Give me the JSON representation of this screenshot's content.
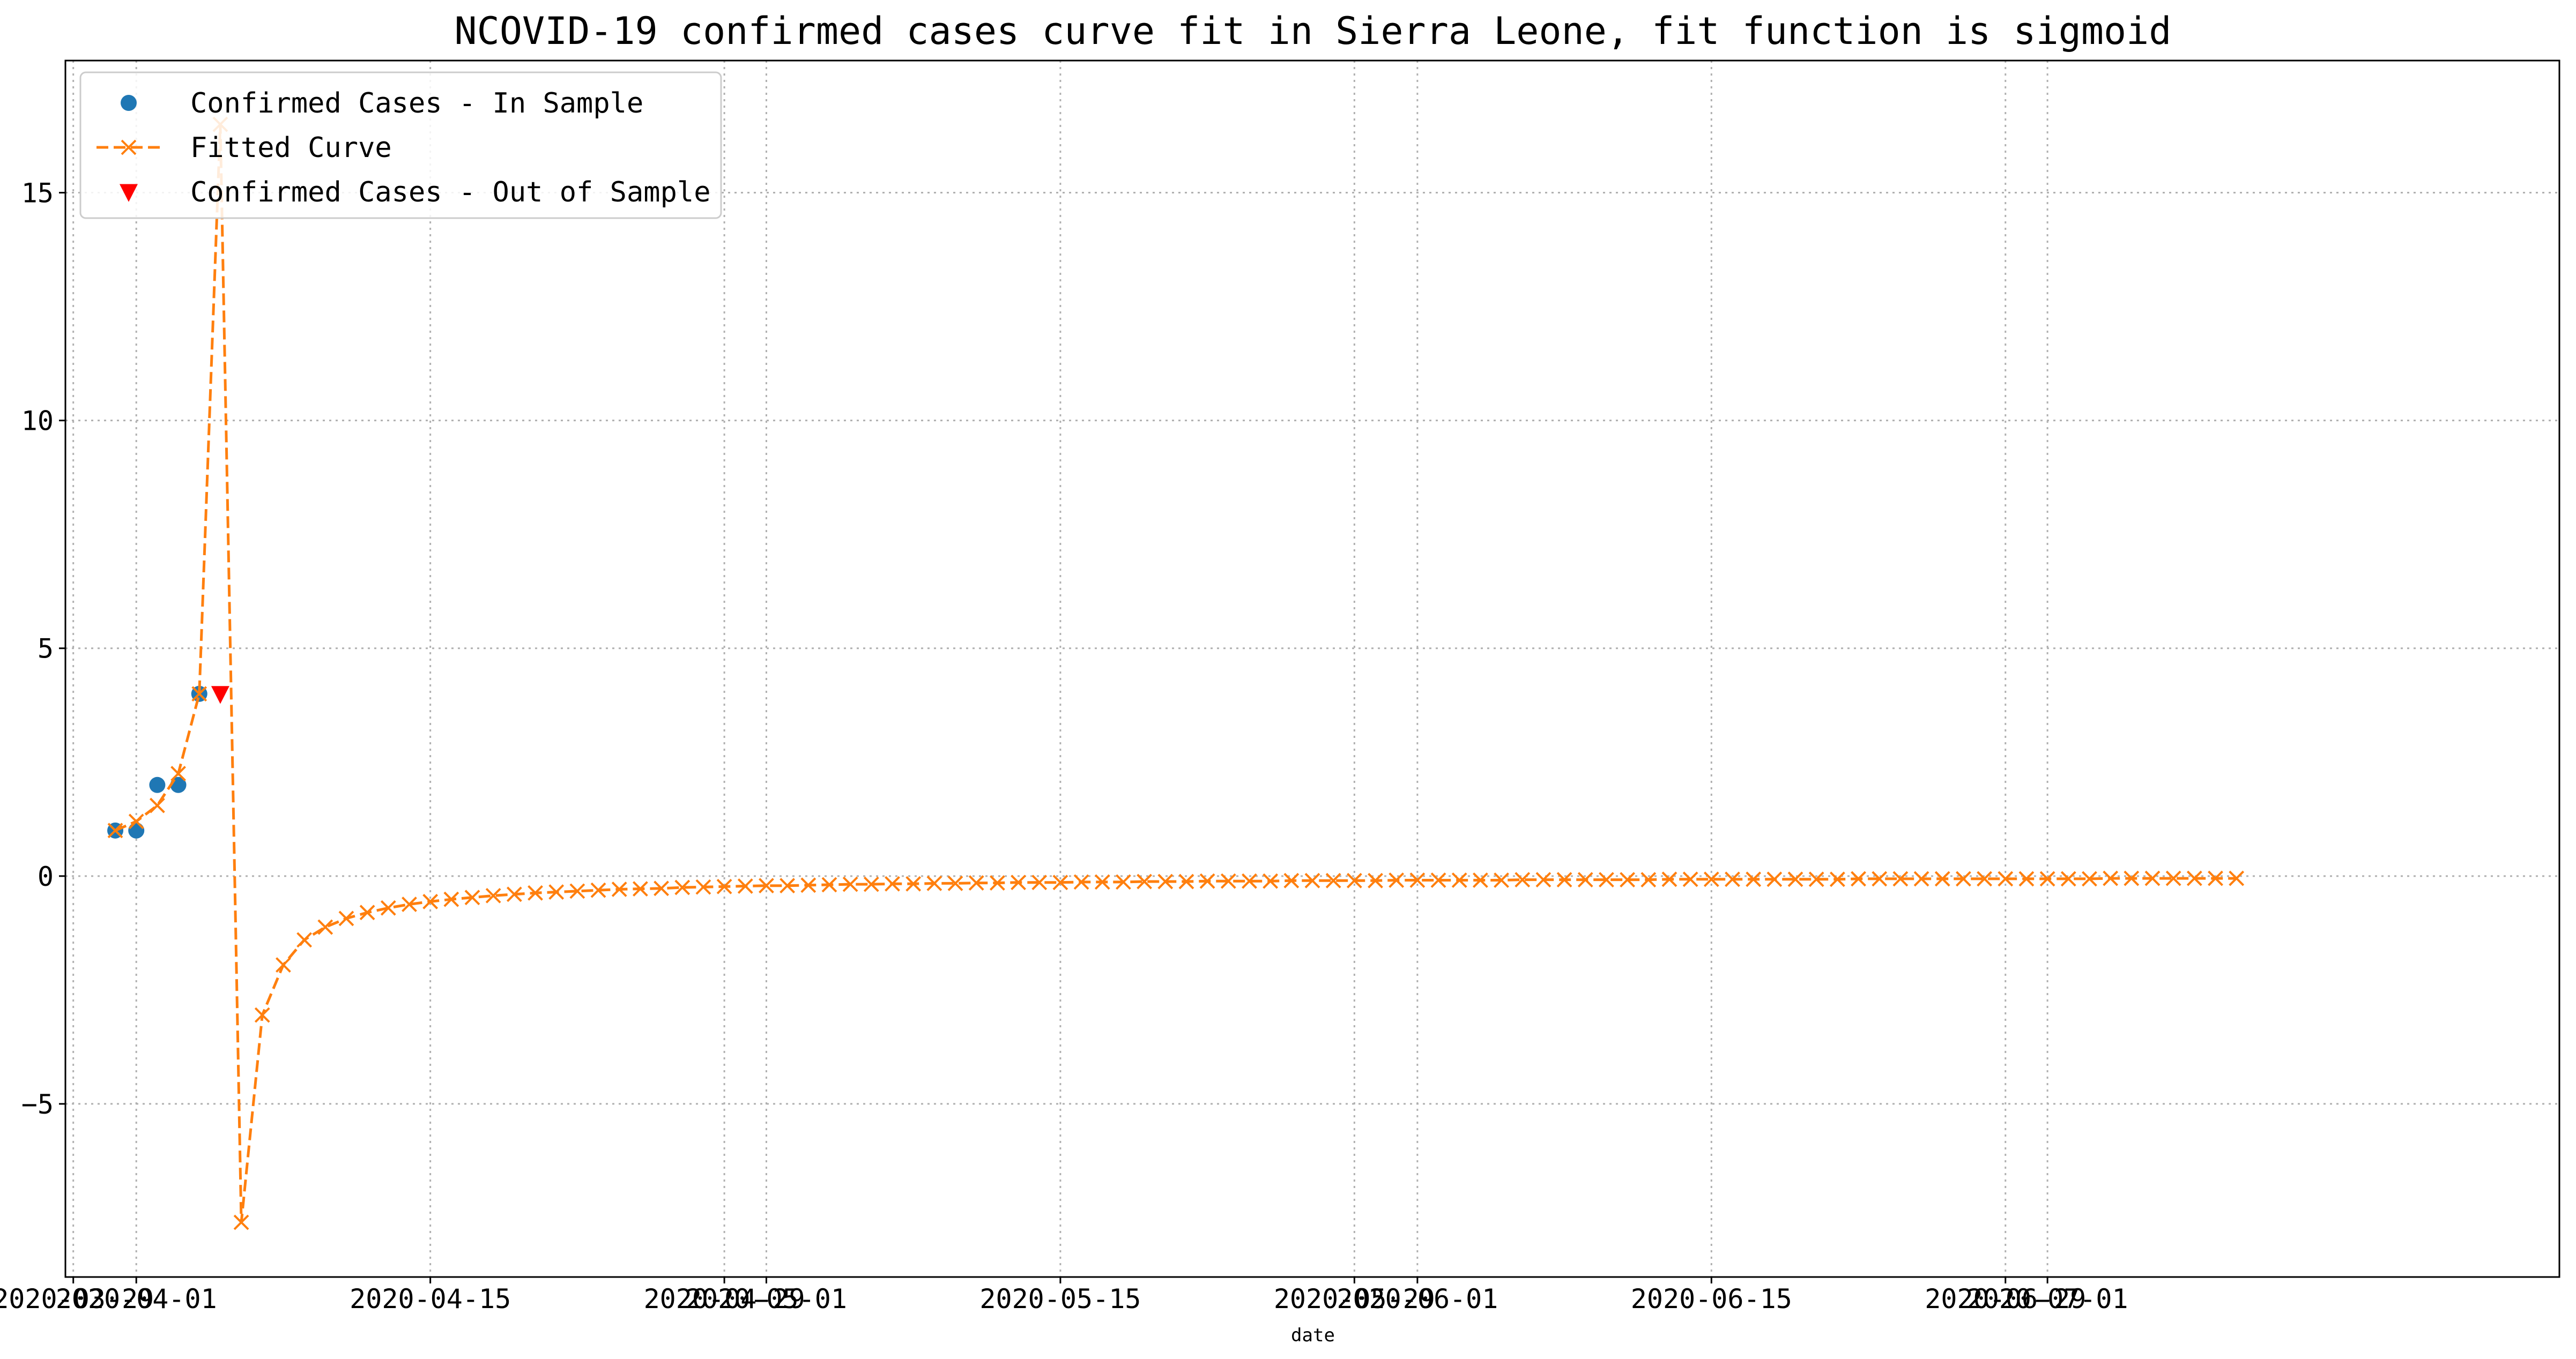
{
  "chart_data": {
    "type": "line",
    "title": "NCOVID-19 confirmed cases curve fit in Sierra Leone, fit function is sigmoid",
    "xlabel": "date",
    "ylabel": "",
    "x_tick_labels": [
      "2020-03-29",
      "2020-04-01",
      "2020-04-15",
      "2020-04-29",
      "2020-05-01",
      "2020-05-15",
      "2020-05-29",
      "2020-06-01",
      "2020-06-15",
      "2020-06-29",
      "2020-07-01"
    ],
    "x_tick_dates": [
      "2020-03-29",
      "2020-04-01",
      "2020-04-15",
      "2020-04-29",
      "2020-05-01",
      "2020-05-15",
      "2020-05-29",
      "2020-06-01",
      "2020-06-15",
      "2020-06-29",
      "2020-07-01"
    ],
    "y_ticks": [
      -5,
      0,
      5,
      10,
      15
    ],
    "y_tick_labels": [
      "−5",
      "0",
      "5",
      "10",
      "15"
    ],
    "xlim": [
      "2020-03-28T15:00",
      "2020-07-25T09:00"
    ],
    "ylim": [
      -8.8,
      17.9
    ],
    "grid": true,
    "legend_position": "top-left",
    "series": [
      {
        "name": "Confirmed Cases - In Sample",
        "marker": "circle",
        "color": "#1f77b4",
        "x": [
          "2020-03-31",
          "2020-04-01",
          "2020-04-02",
          "2020-04-03",
          "2020-04-04"
        ],
        "y": [
          1,
          1,
          2,
          2,
          4
        ]
      },
      {
        "name": "Fitted Curve",
        "marker": "x",
        "line": "dashed",
        "color": "#ff7f0e",
        "x_start": "2020-03-31",
        "x_step_days": 1,
        "y": [
          1.0,
          1.2,
          1.55,
          2.25,
          4.0,
          16.5,
          -7.6,
          -3.05,
          -1.95,
          -1.4,
          -1.12,
          -0.93,
          -0.8,
          -0.7,
          -0.62,
          -0.56,
          -0.51,
          -0.47,
          -0.43,
          -0.4,
          -0.37,
          -0.35,
          -0.33,
          -0.31,
          -0.29,
          -0.28,
          -0.27,
          -0.25,
          -0.24,
          -0.23,
          -0.22,
          -0.21,
          -0.21,
          -0.2,
          -0.19,
          -0.18,
          -0.18,
          -0.17,
          -0.17,
          -0.16,
          -0.16,
          -0.15,
          -0.15,
          -0.14,
          -0.14,
          -0.14,
          -0.13,
          -0.13,
          -0.13,
          -0.12,
          -0.12,
          -0.12,
          -0.11,
          -0.11,
          -0.11,
          -0.11,
          -0.1,
          -0.1,
          -0.1,
          -0.1,
          -0.1,
          -0.09,
          -0.09,
          -0.09,
          -0.09,
          -0.09,
          -0.09,
          -0.08,
          -0.08,
          -0.08,
          -0.08,
          -0.08,
          -0.08,
          -0.08,
          -0.07,
          -0.07,
          -0.07,
          -0.07,
          -0.07,
          -0.07,
          -0.07,
          -0.07,
          -0.07,
          -0.06,
          -0.06,
          -0.06,
          -0.06,
          -0.06,
          -0.06,
          -0.06,
          -0.06,
          -0.06,
          -0.06,
          -0.06,
          -0.06,
          -0.05,
          -0.05,
          -0.05,
          -0.05,
          -0.05,
          -0.05,
          -0.05
        ]
      },
      {
        "name": "Confirmed Cases - Out of Sample",
        "marker": "triangle-down",
        "color": "#ff0000",
        "x": [
          "2020-04-05"
        ],
        "y": [
          4
        ]
      }
    ]
  }
}
